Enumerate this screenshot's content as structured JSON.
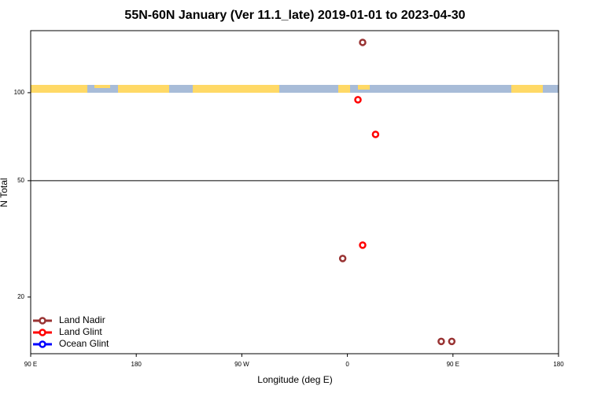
{
  "chart_data": {
    "type": "scatter",
    "title": "55N-60N January (Ver 11.1_late)   2019-01-01 to 2023-04-30",
    "x_label": "Longitude (deg E)",
    "y_label": "N Total",
    "xlim": [
      90,
      540
    ],
    "xticks": [
      {
        "value": 90,
        "label": "90 E"
      },
      180,
      {
        "value": 270,
        "label": "90 W"
      },
      {
        "value": 360,
        "label": "0"
      },
      {
        "value": 450,
        "label": "90 E"
      },
      {
        "value": 540,
        "label": "180"
      }
    ],
    "ylim": [
      12.8,
      163
    ],
    "yticks": [
      20,
      50,
      100
    ],
    "log_y": true,
    "reference_line": 50,
    "legend": "bottom-left",
    "series": [
      {
        "name": "Land Nadir",
        "color": "#993333",
        "x": [
          373,
          356,
          440,
          449
        ],
        "values": [
          148.6,
          27.1,
          14.1,
          14.1
        ]
      },
      {
        "name": "Land Glint",
        "color": "#ff0000",
        "x": [
          369,
          384,
          373
        ],
        "values": [
          94.6,
          72,
          30.1
        ]
      },
      {
        "name": "Ocean Glint",
        "color": "#0000ff",
        "x": [],
        "values": []
      }
    ]
  }
}
